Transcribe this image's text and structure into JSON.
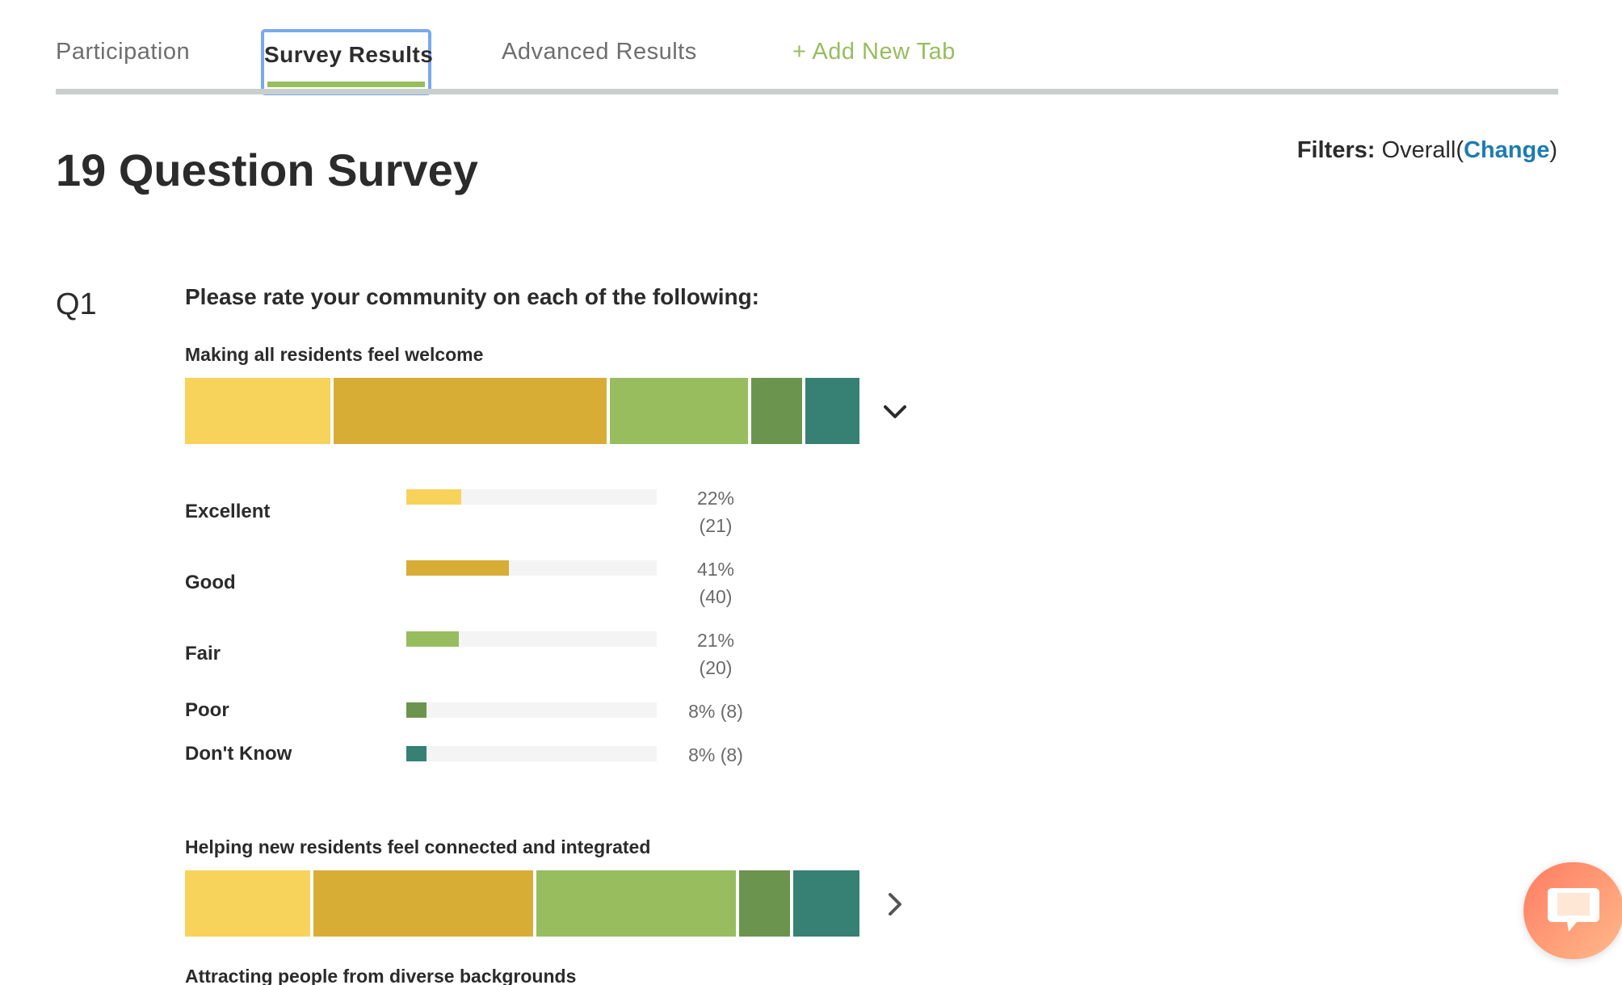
{
  "tabs": [
    {
      "label": "Participation"
    },
    {
      "label": "Survey Results"
    },
    {
      "label": "Advanced Results"
    },
    {
      "label": "+ Add New Tab"
    }
  ],
  "header": {
    "title": "19 Question Survey",
    "filters_label": "Filters:",
    "filters_value": "Overall",
    "paren_open": "(",
    "change_label": "Change",
    "paren_close": ")"
  },
  "question": {
    "number": "Q1",
    "text": "Please rate your community on each of the following:"
  },
  "colors": {
    "excellent": "#f7d35c",
    "good": "#d8ad35",
    "fair": "#97bd5e",
    "poor": "#6b954e",
    "dont_know": "#378074",
    "accent_green": "#97bd5e",
    "link_blue": "#1c7cb0"
  },
  "items": [
    {
      "label": "Making all residents feel welcome",
      "expanded": true,
      "toggle_icon": "chevron-down-icon",
      "segments": [
        22,
        41,
        21,
        8,
        8
      ],
      "responses": [
        {
          "label": "Excellent",
          "percent": 22,
          "pct_text": "22%",
          "count_text": "(21)"
        },
        {
          "label": "Good",
          "percent": 41,
          "pct_text": "41%",
          "count_text": "(40)"
        },
        {
          "label": "Fair",
          "percent": 21,
          "pct_text": "21%",
          "count_text": "(20)"
        },
        {
          "label": "Poor",
          "percent": 8,
          "pct_text": "8%",
          "count_text": "(8)"
        },
        {
          "label": "Don't Know",
          "percent": 8,
          "pct_text": "8%",
          "count_text": "(8)"
        }
      ]
    },
    {
      "label": "Helping new residents feel connected and integrated",
      "expanded": false,
      "toggle_icon": "chevron-right-icon",
      "segments": [
        19,
        33,
        30,
        8,
        10
      ]
    },
    {
      "label": "Attracting people from diverse backgrounds"
    }
  ],
  "chat": {
    "icon": "chat-bubble-icon"
  }
}
